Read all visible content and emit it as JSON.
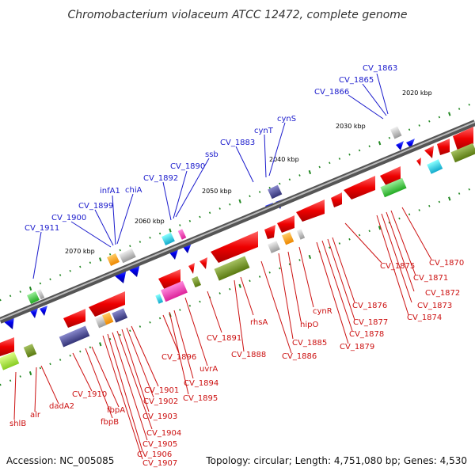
{
  "title": "Chromobacterium violaceum ATCC 12472, complete genome",
  "footer": {
    "accession": "Accession: NC_005085",
    "summary": "Topology: circular; Length: 4,751,080 bp; Genes: 4,530"
  },
  "colors": {
    "forward_label": "#1a1acc",
    "reverse_label": "#cc1111",
    "backbone": "#777777",
    "forward_gene": "#0000ee",
    "reverse_gene": "#ee0000"
  },
  "kbp_ticks": [
    "2020 kbp",
    "2030 kbp",
    "2040 kbp",
    "2050 kbp",
    "2060 kbp",
    "2070 kbp"
  ],
  "forward_labels": [
    "CV_1863",
    "CV_1865",
    "CV_1866",
    "cynS",
    "cynT",
    "CV_1883",
    "ssb",
    "CV_1890",
    "CV_1892",
    "chiA",
    "infA1",
    "CV_1899",
    "CV_1900",
    "CV_1911"
  ],
  "reverse_labels": [
    "CV_1870",
    "CV_1871",
    "CV_1872",
    "CV_1873",
    "CV_1874",
    "CV_1875",
    "CV_1876",
    "CV_1877",
    "CV_1878",
    "CV_1879",
    "cynR",
    "hipO",
    "CV_1885",
    "CV_1886",
    "rhsA",
    "CV_1888",
    "CV_1891",
    "uvrA",
    "CV_1894",
    "CV_1895",
    "CV_1896",
    "CV_1901",
    "CV_1902",
    "CV_1903",
    "CV_1904",
    "CV_1905",
    "CV_1906",
    "CV_1907",
    "CV_1910",
    "fbpA",
    "fbpB",
    "dadA2",
    "alr",
    "shlB"
  ]
}
